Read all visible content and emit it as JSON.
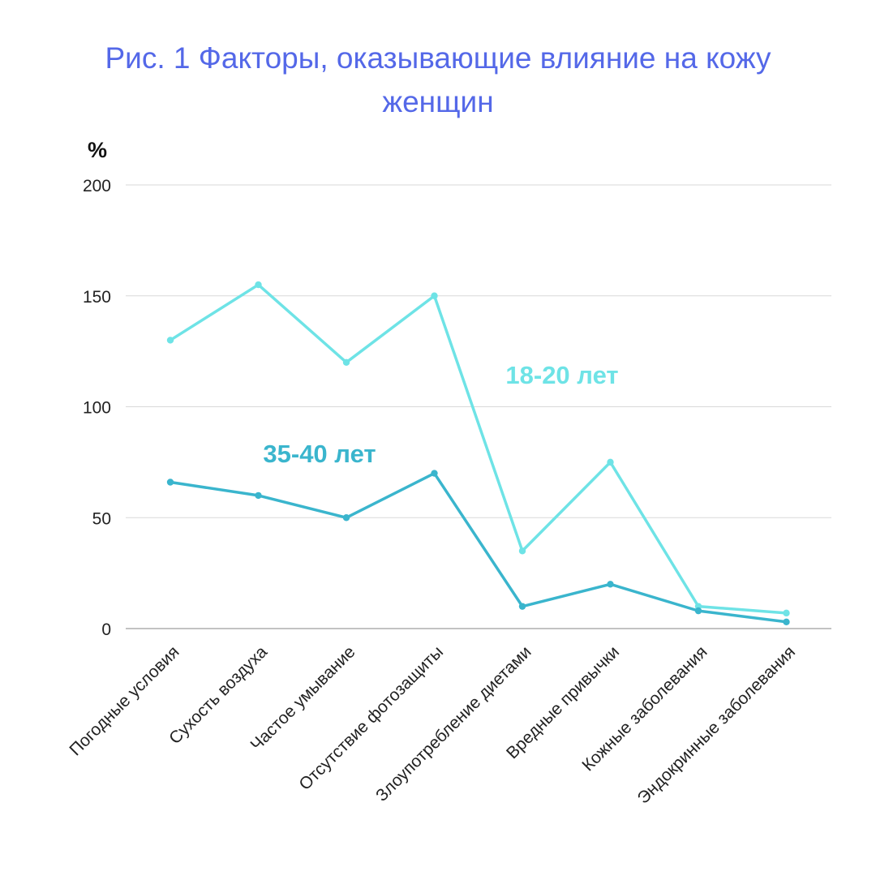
{
  "colors": {
    "title": "#5468e8",
    "series_young": "#6ee3e6",
    "series_mature": "#3ab5cd"
  },
  "chart_data": {
    "type": "line",
    "title_lines": [
      "Рис. 1 Факторы, оказывающие влияние на кожу",
      "женщин"
    ],
    "ylabel": "%",
    "xlabel": "",
    "ylim": [
      0,
      200
    ],
    "yticks": [
      0,
      50,
      100,
      150,
      200
    ],
    "grid": true,
    "categories": [
      "Погодные условия",
      "Сухость воздуха",
      "Частое умывание",
      "Отсутствие фотозащиты",
      "Злоупотребление диетами",
      "Вредные привычки",
      "Кожные заболевания",
      "Эндокринные заболевания"
    ],
    "series": [
      {
        "name": "18-20 лет",
        "color_key": "series_young",
        "values": [
          130,
          155,
          120,
          150,
          35,
          75,
          10,
          7
        ]
      },
      {
        "name": "35-40 лет",
        "color_key": "series_mature",
        "values": [
          66,
          60,
          50,
          70,
          10,
          20,
          8,
          3
        ]
      }
    ],
    "legend": "inline labels near lines"
  }
}
